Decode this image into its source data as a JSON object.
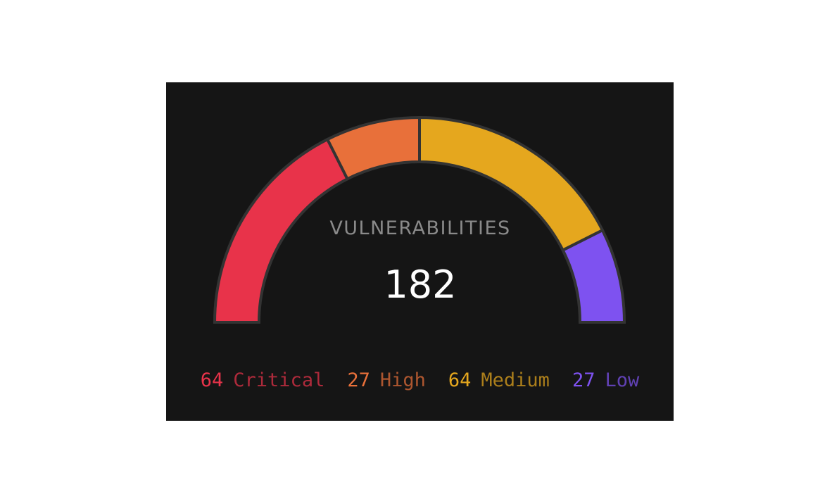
{
  "chart_data": {
    "type": "gauge",
    "title": "VULNERABILITIES",
    "total": 182,
    "categories": [
      "Critical",
      "High",
      "Medium",
      "Low"
    ],
    "values": [
      64,
      27,
      64,
      27
    ],
    "colors": [
      "#e8334a",
      "#e8703a",
      "#e5a71e",
      "#7e52f0"
    ]
  }
}
